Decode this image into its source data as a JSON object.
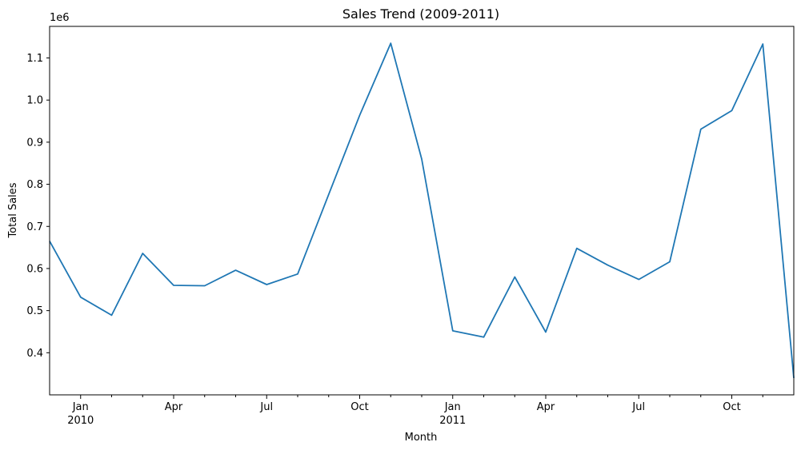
{
  "chart_data": {
    "type": "line",
    "title": "Sales Trend (2009-2011)",
    "xlabel": "Month",
    "ylabel": "Total Sales",
    "y_offset_label": "1e6",
    "y_scale": 1000000,
    "ylim": [
      300000,
      1175000
    ],
    "xlim": [
      "2009-12",
      "2011-12"
    ],
    "grid": false,
    "legend": "none",
    "series_color": "#1f77b4",
    "y_ticks": [
      {
        "value": 400000,
        "label": "0.4"
      },
      {
        "value": 500000,
        "label": "0.5"
      },
      {
        "value": 600000,
        "label": "0.6"
      },
      {
        "value": 700000,
        "label": "0.7"
      },
      {
        "value": 800000,
        "label": "0.8"
      },
      {
        "value": 900000,
        "label": "0.9"
      },
      {
        "value": 1000000,
        "label": "1.0"
      },
      {
        "value": 1100000,
        "label": "1.1"
      }
    ],
    "x_major_ticks": [
      {
        "date": "2010-01",
        "label": "Jan",
        "year_label": "2010"
      },
      {
        "date": "2010-04",
        "label": "Apr"
      },
      {
        "date": "2010-07",
        "label": "Jul"
      },
      {
        "date": "2010-10",
        "label": "Oct"
      },
      {
        "date": "2011-01",
        "label": "Jan",
        "year_label": "2011"
      },
      {
        "date": "2011-04",
        "label": "Apr"
      },
      {
        "date": "2011-07",
        "label": "Jul"
      },
      {
        "date": "2011-10",
        "label": "Oct"
      }
    ],
    "x_minor_ticks": [
      "2010-02",
      "2010-03",
      "2010-05",
      "2010-06",
      "2010-08",
      "2010-09",
      "2010-11",
      "2010-12",
      "2011-02",
      "2011-03",
      "2011-05",
      "2011-06",
      "2011-08",
      "2011-09",
      "2011-11"
    ],
    "x": [
      "2009-12",
      "2010-01",
      "2010-02",
      "2010-03",
      "2010-04",
      "2010-05",
      "2010-06",
      "2010-07",
      "2010-08",
      "2010-09",
      "2010-10",
      "2010-11",
      "2010-12",
      "2011-01",
      "2011-02",
      "2011-03",
      "2011-04",
      "2011-05",
      "2011-06",
      "2011-07",
      "2011-08",
      "2011-09",
      "2011-10",
      "2011-11",
      "2011-12"
    ],
    "values": [
      665000,
      532000,
      489000,
      636000,
      560000,
      559000,
      596000,
      562000,
      587000,
      776000,
      964000,
      1135000,
      860000,
      452000,
      437000,
      580000,
      449000,
      648000,
      608000,
      574000,
      616000,
      931000,
      975000,
      1133000,
      340000
    ]
  }
}
